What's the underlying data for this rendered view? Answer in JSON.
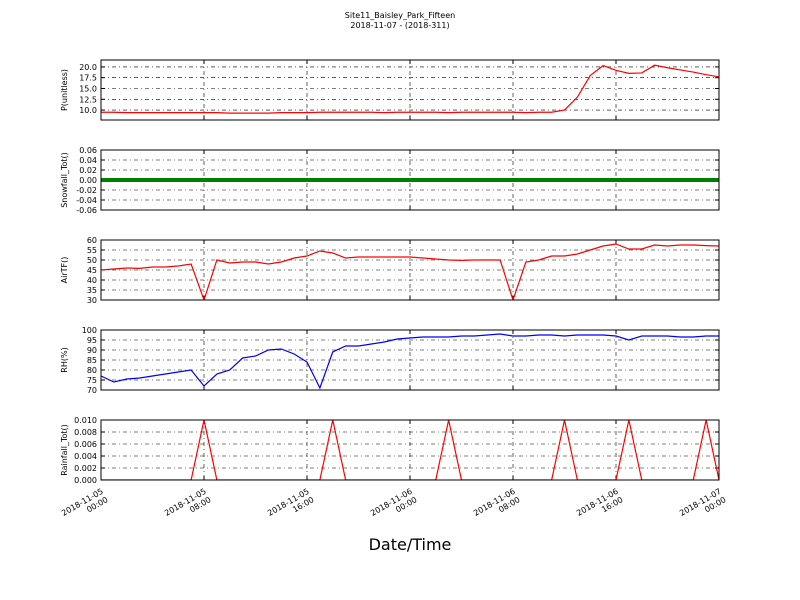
{
  "header": {
    "title": "Site11_Baisley_Park_Fifteen",
    "subtitle": "2018-11-07 - (2018-311)"
  },
  "xlabel": "Date/Time",
  "x": [
    "2018-11-05 00:00",
    "2018-11-05 01:00",
    "2018-11-05 02:00",
    "2018-11-05 03:00",
    "2018-11-05 04:00",
    "2018-11-05 05:00",
    "2018-11-05 06:00",
    "2018-11-05 07:00",
    "2018-11-05 08:00",
    "2018-11-05 09:00",
    "2018-11-05 10:00",
    "2018-11-05 11:00",
    "2018-11-05 12:00",
    "2018-11-05 13:00",
    "2018-11-05 14:00",
    "2018-11-05 15:00",
    "2018-11-05 16:00",
    "2018-11-05 17:00",
    "2018-11-05 18:00",
    "2018-11-05 19:00",
    "2018-11-05 20:00",
    "2018-11-05 21:00",
    "2018-11-05 22:00",
    "2018-11-05 23:00",
    "2018-11-06 00:00",
    "2018-11-06 01:00",
    "2018-11-06 02:00",
    "2018-11-06 03:00",
    "2018-11-06 04:00",
    "2018-11-06 05:00",
    "2018-11-06 06:00",
    "2018-11-06 07:00",
    "2018-11-06 08:00",
    "2018-11-06 09:00",
    "2018-11-06 10:00",
    "2018-11-06 11:00",
    "2018-11-06 12:00",
    "2018-11-06 13:00",
    "2018-11-06 14:00",
    "2018-11-06 15:00",
    "2018-11-06 16:00",
    "2018-11-06 17:00",
    "2018-11-06 18:00",
    "2018-11-06 19:00",
    "2018-11-06 20:00",
    "2018-11-06 21:00",
    "2018-11-06 22:00",
    "2018-11-06 23:00",
    "2018-11-07 00:00"
  ],
  "xlim": [
    "2018-11-05 00:00",
    "2018-11-07 00:00"
  ],
  "xticks": [
    "2018-11-05 00:00",
    "2018-11-05 08:00",
    "2018-11-05 16:00",
    "2018-11-06 00:00",
    "2018-11-06 08:00",
    "2018-11-06 16:00",
    "2018-11-07 00:00"
  ],
  "chart_data": [
    {
      "type": "line",
      "ylabel": "P(unitless)",
      "ylim": [
        7.7,
        21.6
      ],
      "grid": true,
      "yticks": [
        {
          "value": 10,
          "label": "10.0"
        },
        12.5,
        {
          "value": 15,
          "label": "15.0"
        },
        17.5,
        {
          "value": 20,
          "label": "20.0"
        }
      ],
      "series": [
        {
          "color": "#ff0000",
          "values": [
            9.5,
            9.5,
            9.4,
            9.4,
            9.4,
            9.4,
            9.4,
            9.4,
            9.4,
            9.4,
            9.3,
            9.3,
            9.3,
            9.3,
            9.4,
            9.4,
            9.4,
            9.5,
            9.5,
            9.5,
            9.5,
            9.5,
            9.4,
            9.5,
            9.5,
            9.5,
            9.5,
            9.4,
            9.5,
            9.5,
            9.5,
            9.5,
            9.5,
            9.4,
            9.5,
            9.5,
            10,
            13,
            18,
            20.3,
            19.2,
            18.5,
            18.6,
            20.4,
            19.8,
            19.3,
            18.8,
            18.2,
            17.7
          ]
        }
      ]
    },
    {
      "type": "line",
      "ylabel": "Snowfall_Tot()",
      "ylim": [
        -0.06,
        0.06
      ],
      "grid": true,
      "yticks": [
        -0.06,
        -0.04,
        -0.02,
        {
          "value": 0,
          "label": "0.00"
        },
        0.02,
        0.04,
        0.06
      ],
      "series": [
        {
          "color": "#008000",
          "values": [
            0,
            0,
            0,
            0,
            0,
            0,
            0,
            0,
            0,
            0,
            0,
            0,
            0,
            0,
            0,
            0,
            0,
            0,
            0,
            0,
            0,
            0,
            0,
            0,
            0,
            0,
            0,
            0,
            0,
            0,
            0,
            0,
            0,
            0,
            0,
            0,
            0,
            0,
            0,
            0,
            0,
            0,
            0,
            0,
            0,
            0,
            0,
            0,
            0
          ]
        }
      ]
    },
    {
      "type": "line",
      "ylabel": "AirTF()",
      "ylim": [
        30,
        60
      ],
      "grid": true,
      "yticks": [
        30,
        35,
        40,
        45,
        50,
        55,
        60
      ],
      "series": [
        {
          "color": "#ff0000",
          "values": [
            45,
            45.5,
            46,
            45.8,
            46.5,
            46.5,
            47,
            48,
            30,
            50,
            48.5,
            49,
            49,
            48,
            49,
            51,
            52,
            54.5,
            53.5,
            51,
            51.5,
            51.5,
            51.5,
            51.5,
            51.5,
            51,
            50.5,
            50,
            49.8,
            50,
            50,
            50,
            30,
            49,
            50,
            52,
            52,
            53,
            55,
            57,
            58,
            55.5,
            55.5,
            57.5,
            57,
            57.5,
            57.5,
            57.2,
            57
          ]
        }
      ]
    },
    {
      "type": "line",
      "ylabel": "RH(%)",
      "ylim": [
        70,
        100
      ],
      "grid": true,
      "yticks": [
        70,
        75,
        80,
        85,
        90,
        95,
        100
      ],
      "series": [
        {
          "color": "#0000ff",
          "values": [
            77,
            74,
            75.5,
            76,
            77,
            78,
            79,
            80,
            72,
            78,
            80,
            86,
            87,
            90,
            90.5,
            88,
            84,
            71,
            89,
            92,
            92,
            93,
            94,
            95.5,
            96,
            96.5,
            96.5,
            96.5,
            97,
            97,
            97.5,
            98,
            97,
            97,
            97.5,
            97.5,
            97,
            97.5,
            97.5,
            97.5,
            97,
            95,
            97,
            97,
            97,
            96.5,
            96.5,
            97,
            97
          ]
        }
      ]
    },
    {
      "type": "line",
      "ylabel": "Rainfall_Tot()",
      "ylim": [
        0,
        0.01
      ],
      "grid": true,
      "yticks": [
        {
          "value": 0,
          "label": "0.000"
        },
        0.002,
        0.004,
        0.006,
        0.008,
        {
          "value": 0.01,
          "label": "0.010"
        }
      ],
      "series": [
        {
          "color": "#ff0000",
          "values": [
            0,
            0,
            0,
            0,
            0,
            0,
            0,
            0,
            0.01,
            0,
            0,
            0,
            0,
            0,
            0,
            0,
            0,
            0,
            0.01,
            0,
            0,
            0,
            0,
            0,
            0,
            0,
            0,
            0.01,
            0,
            0,
            0,
            0,
            0,
            0,
            0,
            0,
            0.01,
            0,
            0,
            0,
            0,
            0.01,
            0,
            0,
            0,
            0,
            0,
            0.01,
            0
          ]
        }
      ]
    }
  ]
}
